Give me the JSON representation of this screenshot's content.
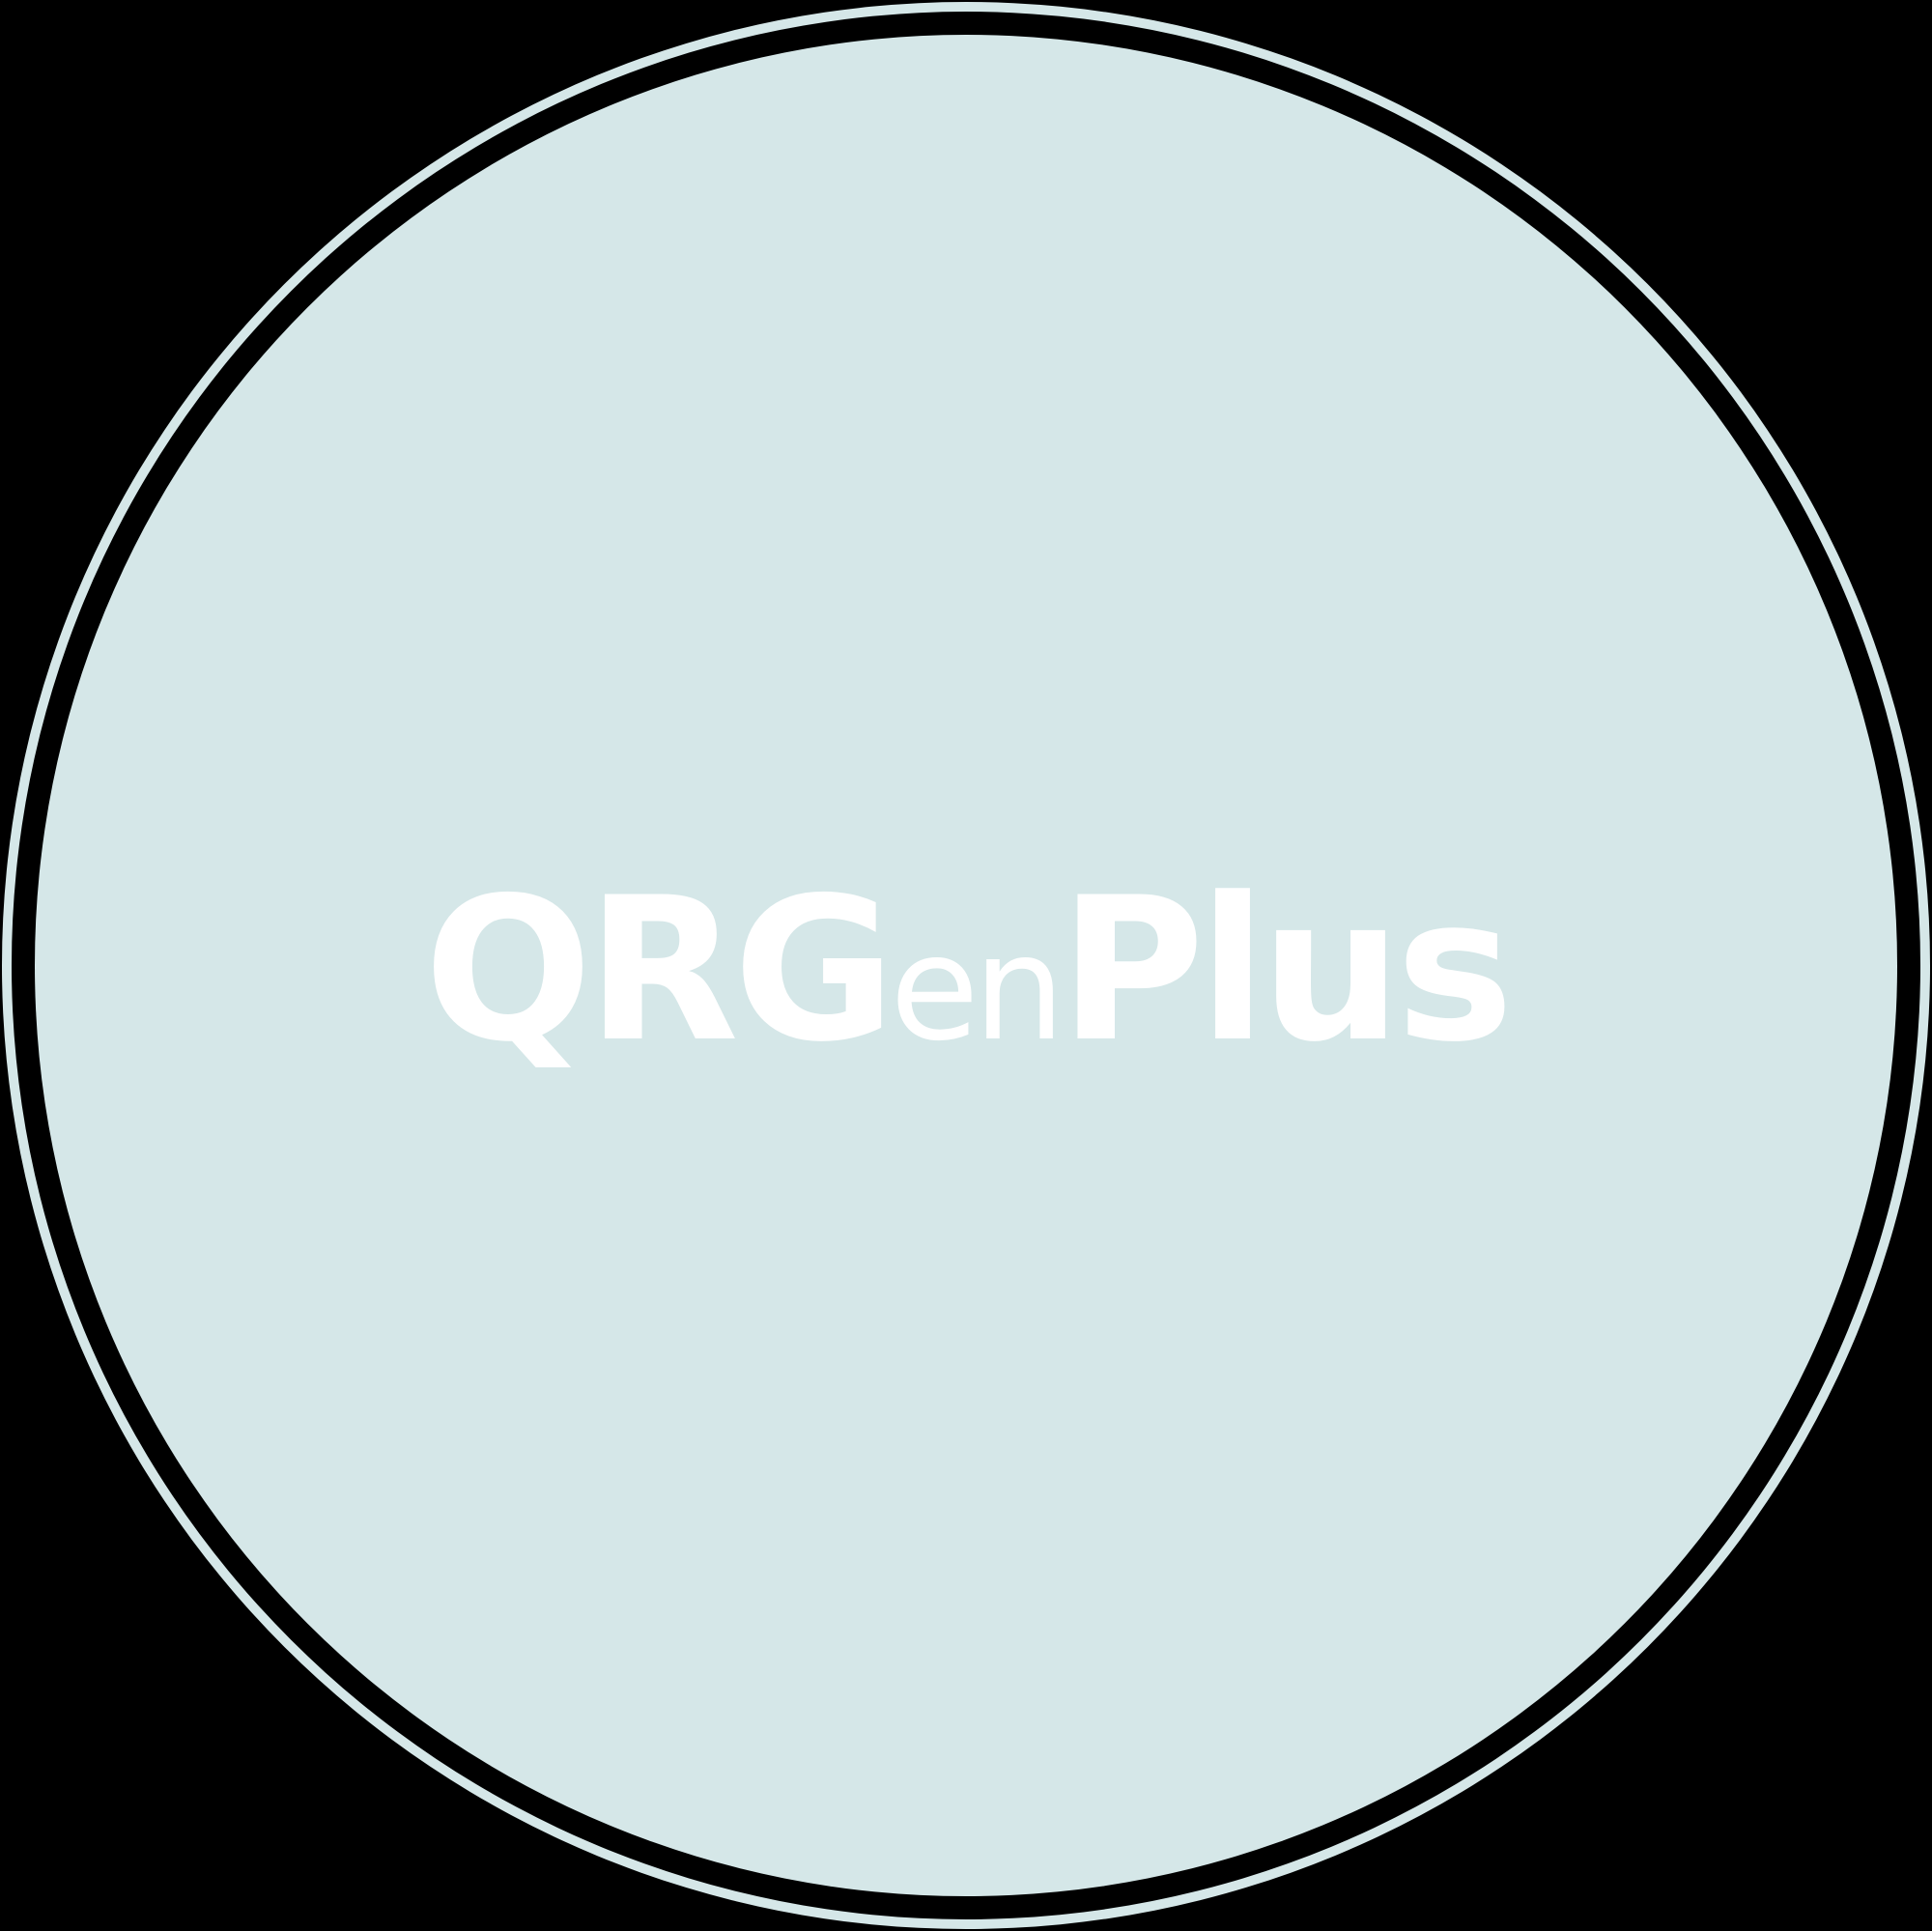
{
  "logo": {
    "wordmark_parts": [
      "QRG",
      "en",
      "Plus"
    ],
    "background_color": "#000000",
    "disc_color": "#d5e7e8",
    "text_color": "#ffffff"
  }
}
